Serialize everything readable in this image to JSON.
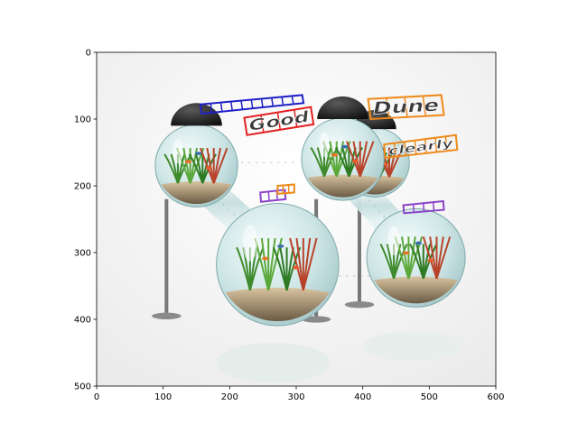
{
  "chart_data": {
    "type": "image",
    "xlim": [
      0,
      600
    ],
    "ylim": [
      500,
      0
    ],
    "x_ticks": [
      "0",
      "100",
      "200",
      "300",
      "400",
      "500",
      "600"
    ],
    "y_ticks": [
      "0",
      "100",
      "200",
      "300",
      "400",
      "500"
    ],
    "image_subject": "aquarium-bubble-tanks",
    "text_annotations": [
      {
        "text": "Dune",
        "color": "#ee8a1a",
        "box": [
          [
            408,
            70
          ],
          [
            518,
            64
          ],
          [
            522,
            94
          ],
          [
            412,
            100
          ]
        ]
      },
      {
        "text": "clearly",
        "color": "#ee8a1a",
        "box": [
          [
            432,
            138
          ],
          [
            540,
            124
          ],
          [
            542,
            146
          ],
          [
            434,
            158
          ]
        ]
      },
      {
        "text": "Good",
        "color": "#e32020",
        "box": [
          [
            222,
            98
          ],
          [
            322,
            82
          ],
          [
            326,
            108
          ],
          [
            226,
            124
          ]
        ]
      },
      {
        "text": "",
        "color": "#2020c8",
        "box": [
          [
            156,
            78
          ],
          [
            309,
            64
          ],
          [
            311,
            76
          ],
          [
            158,
            92
          ]
        ]
      },
      {
        "text": "",
        "color": "#8a44c8",
        "box": [
          [
            246,
            210
          ],
          [
            283,
            206
          ],
          [
            284,
            220
          ],
          [
            247,
            224
          ]
        ]
      },
      {
        "text": "",
        "color": "#ee8a1a",
        "box": [
          [
            272,
            200
          ],
          [
            297,
            198
          ],
          [
            297,
            210
          ],
          [
            272,
            212
          ]
        ]
      },
      {
        "text": "",
        "color": "#8a44c8",
        "box": [
          [
            461,
            229
          ],
          [
            521,
            223
          ],
          [
            522,
            236
          ],
          [
            462,
            241
          ]
        ]
      }
    ]
  }
}
